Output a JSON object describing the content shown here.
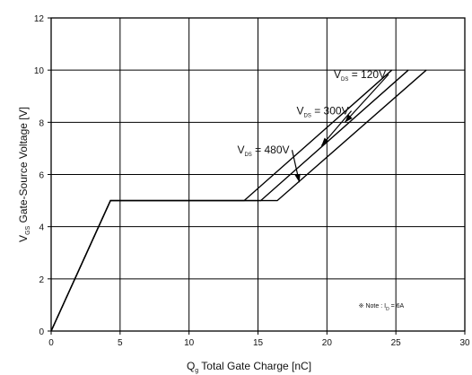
{
  "chart_data": {
    "type": "line",
    "xlabel": {
      "main": "Q",
      "sub": "g",
      "rest": " Total Gate Charge [nC]"
    },
    "ylabel": {
      "main": "V",
      "sub": "GS",
      "rest": " Gate-Source Voltage [V]"
    },
    "xlim": [
      0,
      30
    ],
    "ylim": [
      0,
      12
    ],
    "xticks": [
      0,
      5,
      10,
      15,
      20,
      25,
      30
    ],
    "yticks": [
      0,
      2,
      4,
      6,
      8,
      10,
      12
    ],
    "grid": true,
    "series": [
      {
        "label": {
          "main": "V",
          "sub": "DS",
          "rest": " = 120V"
        },
        "points": [
          [
            0,
            0
          ],
          [
            4.3,
            5
          ],
          [
            14.0,
            5
          ],
          [
            24.7,
            10
          ]
        ],
        "label_pos": [
          20.5,
          9.7
        ],
        "arrow_to": [
          21.3,
          8.0
        ]
      },
      {
        "label": {
          "main": "V",
          "sub": "DS",
          "rest": " = 300V"
        },
        "points": [
          [
            0,
            0
          ],
          [
            4.3,
            5
          ],
          [
            15.2,
            5
          ],
          [
            25.9,
            10
          ]
        ],
        "label_pos": [
          17.8,
          8.3
        ],
        "arrow_to": [
          19.6,
          7.1
        ]
      },
      {
        "label": {
          "main": "V",
          "sub": "DS",
          "rest": " = 480V"
        },
        "points": [
          [
            0,
            0
          ],
          [
            4.3,
            5
          ],
          [
            16.4,
            5
          ],
          [
            27.2,
            10
          ]
        ],
        "label_pos": [
          13.5,
          6.8
        ],
        "arrow_to": [
          18.0,
          5.7
        ]
      }
    ],
    "annotation": {
      "text": "※ Note : I",
      "sub": "D",
      "rest": " = 6A",
      "pos": [
        22.3,
        0.9
      ]
    }
  }
}
